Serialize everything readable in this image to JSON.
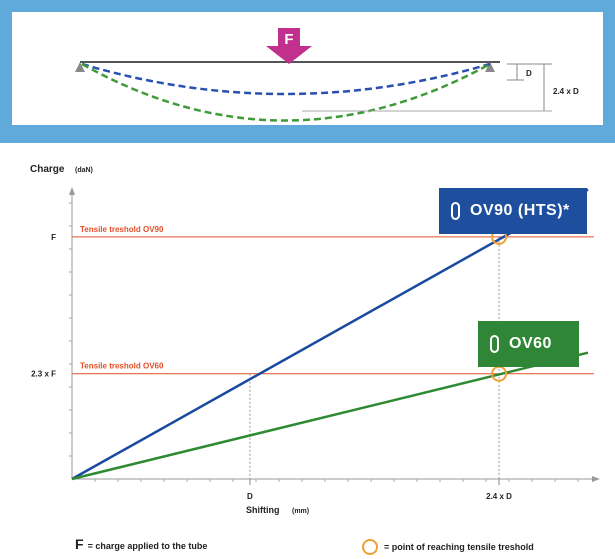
{
  "beam_diagram": {
    "force_label": "F",
    "d_label": "D",
    "deflection_label": "2.4 x D"
  },
  "chart_data": {
    "type": "line",
    "ylabel": "Charge",
    "ylabel_unit": "(daN)",
    "xlabel": "Shifting",
    "xlabel_unit": "(mm)",
    "x_ticks": [
      "D",
      "2.4 x D"
    ],
    "y_ticks": [
      "2.3 x F",
      "F"
    ],
    "x_tick_values": [
      1,
      2.4
    ],
    "y_tick_values": [
      1,
      2.3
    ],
    "xlim": [
      0,
      2.9
    ],
    "ylim": [
      0,
      2.85
    ],
    "grid": false,
    "series": [
      {
        "name": "OV90 (HTS)*",
        "color": "#1a4aa0",
        "x": [
          0,
          2.9
        ],
        "y": [
          0,
          2.75
        ]
      },
      {
        "name": "OV60",
        "color": "#2e8a32",
        "x": [
          0,
          2.9
        ],
        "y": [
          0,
          1.2
        ]
      }
    ],
    "thresholds": [
      {
        "label": "Tensile treshold OV90",
        "value": 2.3,
        "color": "#e2502a"
      },
      {
        "label": "Tensile treshold OV60",
        "value": 1,
        "color": "#e2502a"
      }
    ],
    "markers": [
      {
        "x": 2.4,
        "y": 2.3,
        "color": "#f0a030"
      },
      {
        "x": 2.4,
        "y": 1,
        "color": "#f0a030"
      }
    ]
  },
  "legend": {
    "f_symbol": "F",
    "f_text": "= charge applied to the tube",
    "marker_text": "= point of reaching tensile treshold"
  }
}
